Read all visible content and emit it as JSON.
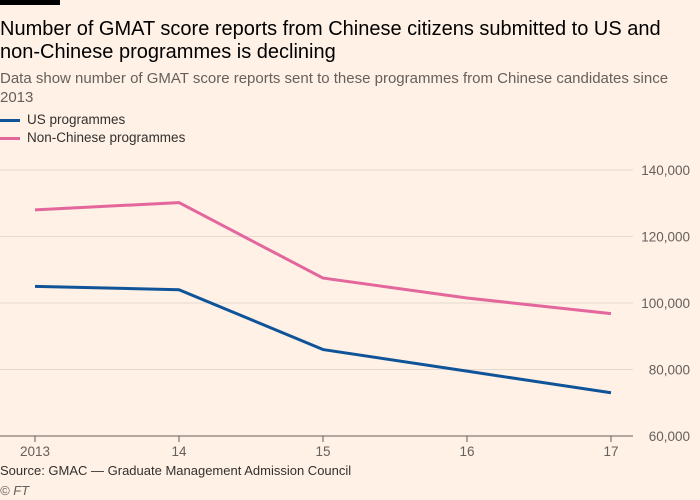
{
  "title": "Number of GMAT score reports from Chinese citizens submitted to US and non-Chinese programmes is declining",
  "subtitle": "Data show number of GMAT score reports sent to these programmes from Chinese candidates since 2013",
  "source": "Source: GMAC — Graduate Management Admission Council",
  "credit": "© FT",
  "colors": {
    "us": "#0f5499",
    "non_chinese": "#e3669c",
    "grid": "#e6d9ce",
    "axis": "#66605c"
  },
  "legend": {
    "us_label": "US programmes",
    "non_chinese_label": "Non-Chinese programmes"
  },
  "chart_data": {
    "type": "line",
    "x": [
      2013,
      2014,
      2015,
      2016,
      2017
    ],
    "x_tick_labels": [
      "2013",
      "14",
      "15",
      "16",
      "17"
    ],
    "ylim": [
      60000,
      140000
    ],
    "y_ticks": [
      60000,
      80000,
      100000,
      120000,
      140000
    ],
    "y_tick_labels": [
      "60,000",
      "80,000",
      "100,000",
      "120,000",
      "140,000"
    ],
    "grid": true,
    "legend_position": "top-left",
    "series": [
      {
        "name": "US programmes",
        "color": "#0f5499",
        "values": [
          105000,
          104000,
          86000,
          79500,
          73000
        ]
      },
      {
        "name": "Non-Chinese programmes",
        "color": "#e3669c",
        "values": [
          128000,
          130200,
          107500,
          101500,
          96800
        ]
      }
    ]
  }
}
